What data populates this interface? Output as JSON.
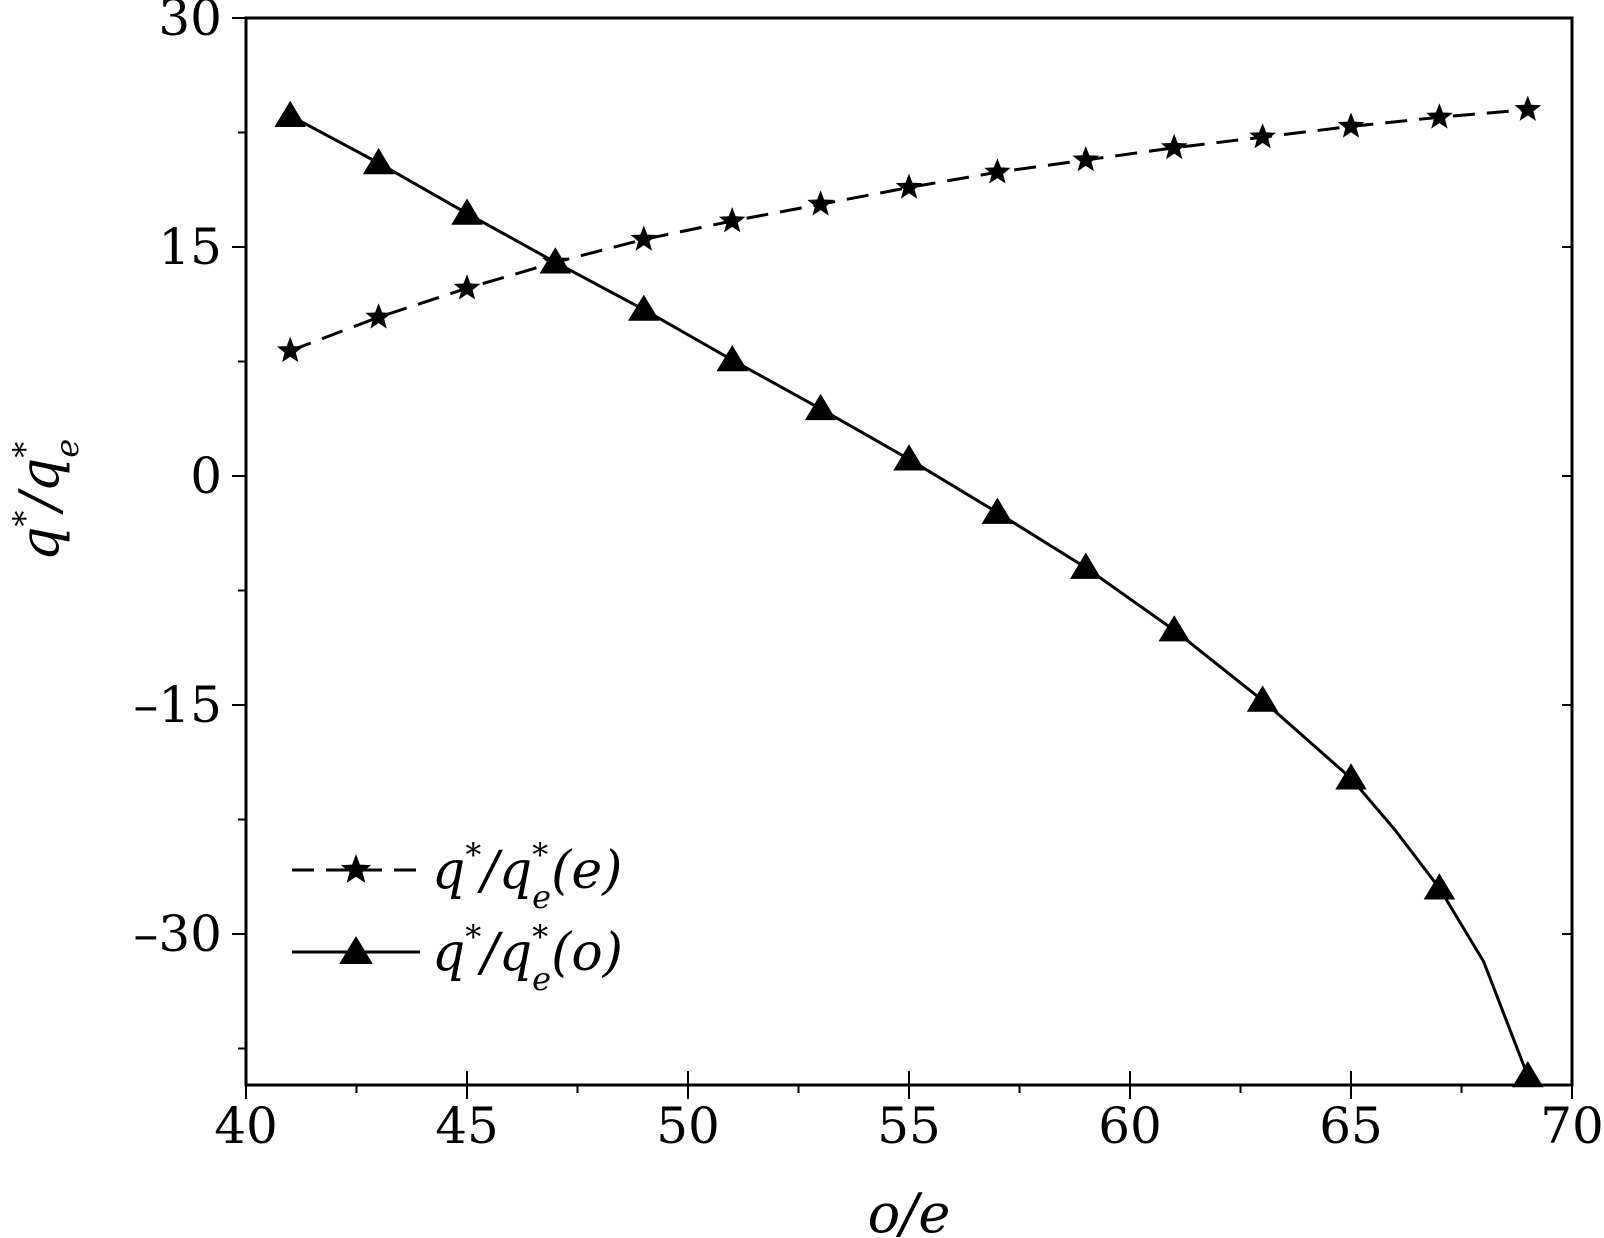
{
  "chart_data": {
    "type": "line",
    "xlabel": "o/e",
    "ylabel": {
      "base": "q",
      "sup": "*",
      "sep": "/",
      "base2": "q",
      "sub2": "e",
      "sup2": "*"
    },
    "xlim": [
      40,
      70
    ],
    "ylim": [
      -40,
      30
    ],
    "xticks": [
      40,
      45,
      50,
      55,
      60,
      65,
      70
    ],
    "yticks": [
      30,
      15,
      0,
      -15,
      -30
    ],
    "xtick_labels": [
      "40",
      "45",
      "50",
      "55",
      "60",
      "65",
      "70"
    ],
    "ytick_labels": [
      "30",
      "15",
      "0",
      "–15",
      "–30"
    ],
    "legend_position": "bottom-left",
    "series": [
      {
        "id": "e",
        "name": {
          "base": "q",
          "sup": "*",
          "sep": "/",
          "base2": "q",
          "sub2": "e",
          "sup2": "*",
          "tail": "(e)"
        },
        "style": "dashed",
        "marker": "star",
        "x": [
          41,
          43,
          45,
          47,
          49,
          51,
          53,
          55,
          57,
          59,
          61,
          63,
          65,
          67,
          69
        ],
        "y": [
          8.2,
          10.4,
          12.3,
          14.0,
          15.5,
          16.7,
          17.8,
          18.9,
          19.9,
          20.7,
          21.5,
          22.2,
          22.9,
          23.5,
          24.0
        ]
      },
      {
        "id": "o",
        "name": {
          "base": "q",
          "sup": "*",
          "sep": "/",
          "base2": "q",
          "sub2": "e",
          "sup2": "*",
          "tail": "(o)"
        },
        "style": "solid",
        "marker": "triangle",
        "x": [
          41,
          43,
          45,
          47,
          49,
          51,
          53,
          55,
          57,
          59,
          61,
          63,
          65,
          67,
          69
        ],
        "y": [
          23.6,
          20.5,
          17.2,
          14.0,
          10.9,
          7.6,
          4.4,
          1.1,
          -2.4,
          -6.0,
          -10.1,
          -14.7,
          -19.8,
          -27.0,
          -39.3
        ],
        "line_extra": [
          {
            "x": 66,
            "y": -23.2
          },
          {
            "x": 68,
            "y": -31.8
          }
        ]
      }
    ],
    "colors": {
      "line": "#000000",
      "background": "#ffffff"
    }
  }
}
